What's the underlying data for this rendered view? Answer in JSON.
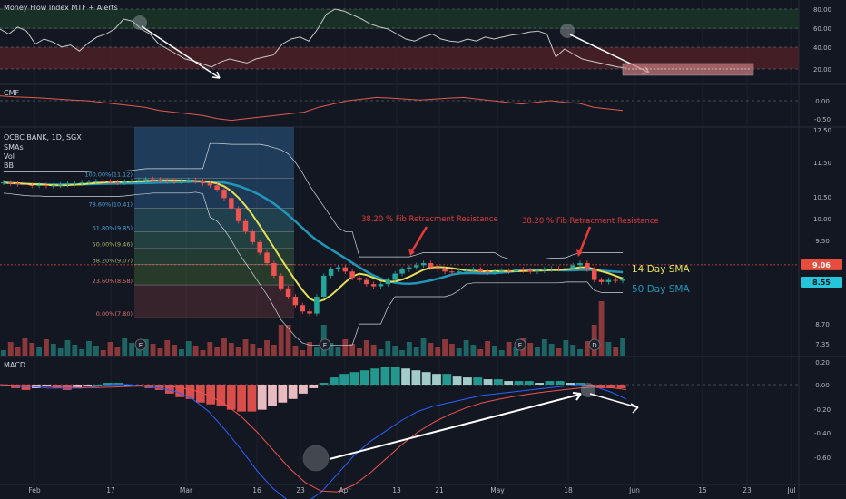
{
  "colors": {
    "background": "#131722",
    "grid": "#1e222d",
    "up": "#26a69a",
    "down": "#ef5350",
    "sma14": "#e5e055",
    "sma50": "#2196b8",
    "bb": "#d1d4dc",
    "annotation": "#e33b3b",
    "current_price": "#e74c3c",
    "white_arrow": "#ffffff"
  },
  "panes": {
    "mfi": {
      "title": "Money Flow Index MTF + Alerts",
      "yticks": [
        "80.00",
        "60.00",
        "40.00",
        "20.00"
      ]
    },
    "cmf": {
      "title": "CMF",
      "yticks": [
        "0.00",
        "-0.50"
      ]
    },
    "price": {
      "title": "OCBC BANK, 1D, SGX",
      "overlays": [
        "SMAs",
        "Vol",
        "BB"
      ],
      "yticks": [
        "12.50",
        "11.50",
        "10.50",
        "10.00",
        "9.50",
        "8.90",
        "8.70",
        "7.35"
      ],
      "current_price_label": "9.06",
      "sma_price_label": "8.55",
      "sma14_label": "14 Day SMA",
      "sma50_label": "50 Day SMA",
      "annotations": [
        "38.20 % Fib Retracment Resistance",
        "38.20 % Fib Retracment Resistance"
      ],
      "event_markers": [
        "E",
        "E",
        "E",
        "D"
      ]
    },
    "macd": {
      "title": "MACD",
      "yticks": [
        "0.20",
        "0.00",
        "-0.20",
        "-0.40",
        "-0.60"
      ]
    }
  },
  "x_axis_labels": [
    "Feb",
    "17",
    "Mar",
    "16",
    "23",
    "Apr",
    "13",
    "21",
    "May",
    "18",
    "Jun",
    "15",
    "23",
    "Jul"
  ],
  "chart_data": {
    "type": "candlestick",
    "title": "OCBC BANK, 1D, SGX",
    "fib_levels": [
      {
        "label": "100.00%(11.12)",
        "value": 11.12
      },
      {
        "label": "78.60%(10.41)",
        "value": 10.41
      },
      {
        "label": "61.80%(9.85)",
        "value": 9.85
      },
      {
        "label": "50.00%(9.46)",
        "value": 9.46
      },
      {
        "label": "38.20%(9.07)",
        "value": 9.07
      },
      {
        "label": "23.60%(8.58)",
        "value": 8.58
      },
      {
        "label": "0.00%(7.80)",
        "value": 7.8
      }
    ],
    "closes": [
      11.02,
      11.0,
      10.98,
      10.96,
      10.95,
      10.96,
      10.94,
      10.95,
      10.97,
      10.99,
      11.0,
      11.02,
      11.03,
      11.05,
      11.04,
      11.03,
      11.02,
      11.04,
      11.06,
      11.08,
      11.1,
      11.09,
      11.07,
      11.05,
      11.04,
      11.06,
      11.08,
      11.05,
      11.0,
      10.95,
      10.85,
      10.65,
      10.4,
      10.1,
      9.85,
      9.6,
      9.35,
      9.1,
      8.8,
      8.5,
      8.3,
      8.1,
      7.95,
      7.9,
      8.3,
      8.8,
      8.95,
      9.0,
      8.9,
      8.75,
      8.7,
      8.6,
      8.55,
      8.6,
      8.7,
      8.85,
      8.95,
      9.0,
      9.05,
      9.1,
      9.0,
      8.95,
      8.9,
      8.88,
      8.9,
      8.92,
      8.95,
      8.9,
      8.88,
      8.9,
      8.92,
      8.9,
      8.95,
      8.93,
      8.9,
      8.92,
      8.95,
      8.97,
      8.96,
      8.98,
      9.05,
      9.1,
      8.95,
      8.7,
      8.65,
      8.7,
      8.68,
      8.72
    ]
  }
}
